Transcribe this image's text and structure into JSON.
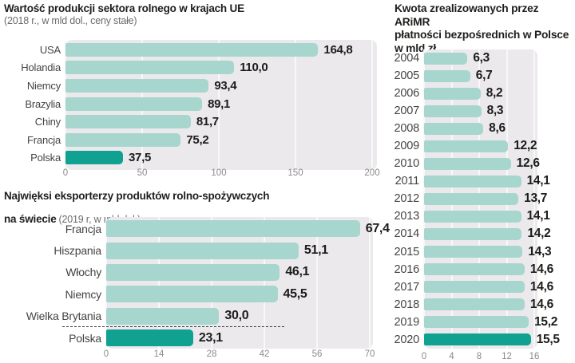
{
  "colors": {
    "bar": "#a7d6ce",
    "bar_highlight": "#10a190",
    "plot_bg": "#ebe9ec",
    "grid": "#f8f7f9",
    "title": "#1e1e1c",
    "subtitle": "#6d6a6b",
    "category": "#454443",
    "tick": "#8c8a8b",
    "value": "#1c1c1a",
    "separator": "#3a3a3a"
  },
  "chart_data": [
    {
      "type": "bar",
      "orientation": "horizontal",
      "title": "Wartość produkcji sektora rolnego w krajach UE",
      "subtitle": "(2018 r., w mld dol., ceny stałe)",
      "categories": [
        "USA",
        "Holandia",
        "Niemcy",
        "Brazylia",
        "Chiny",
        "Francja",
        "Polska"
      ],
      "values": [
        164.8,
        110.0,
        93.4,
        89.1,
        81.7,
        75.2,
        37.5
      ],
      "value_labels": [
        "164,8",
        "110,0",
        "93,4",
        "89,1",
        "81,7",
        "75,2",
        "37,5"
      ],
      "highlight_category": "Polska",
      "xlim": [
        0,
        200
      ],
      "tick_labels": [
        "0",
        "50",
        "100",
        "150",
        "200"
      ],
      "grid": true,
      "legend": "none"
    },
    {
      "type": "bar",
      "orientation": "horizontal",
      "title_line1": "Najwięksi eksporterzy produktów rolno-spożywczych",
      "title_line2": "na świecie",
      "subtitle": "(2019 r, w mld dol.)",
      "categories": [
        "Francja",
        "Hiszpania",
        "Włochy",
        "Niemcy",
        "Wielka Brytania",
        "Polska"
      ],
      "values": [
        67.4,
        51.1,
        46.1,
        45.5,
        30.0,
        23.1
      ],
      "value_labels": [
        "67,4",
        "51,1",
        "46,1",
        "45,5",
        "30,0",
        "23,1"
      ],
      "highlight_category": "Polska",
      "separator_before_category": "Polska",
      "xlim": [
        0,
        70
      ],
      "tick_labels": [
        "0",
        "14",
        "28",
        "42",
        "56",
        "70"
      ],
      "grid": true,
      "legend": "none"
    },
    {
      "type": "bar",
      "orientation": "horizontal",
      "title_lines": [
        "Kwota zrealizowanych przez ARiMR",
        "płatności bezpośrednich w Polsce",
        "w mld zł"
      ],
      "categories": [
        "2004",
        "2005",
        "2006",
        "2007",
        "2008",
        "2009",
        "2010",
        "2011",
        "2012",
        "2013",
        "2014",
        "2015",
        "2016",
        "2017",
        "2018",
        "2019",
        "2020"
      ],
      "values": [
        6.3,
        6.7,
        8.2,
        8.3,
        8.6,
        12.2,
        12.6,
        14.1,
        13.7,
        14.1,
        14.2,
        14.3,
        14.6,
        14.6,
        14.6,
        15.2,
        15.5
      ],
      "value_labels": [
        "6,3",
        "6,7",
        "8,2",
        "8,3",
        "8,6",
        "12,2",
        "12,6",
        "14,1",
        "13,7",
        "14,1",
        "14,2",
        "14,3",
        "14,6",
        "14,6",
        "14,6",
        "15,2",
        "15,5"
      ],
      "highlight_category": "2020",
      "xlim": [
        0,
        16
      ],
      "tick_labels": [
        "0",
        "4",
        "8",
        "12",
        "16"
      ],
      "grid": true,
      "legend": "none"
    }
  ]
}
